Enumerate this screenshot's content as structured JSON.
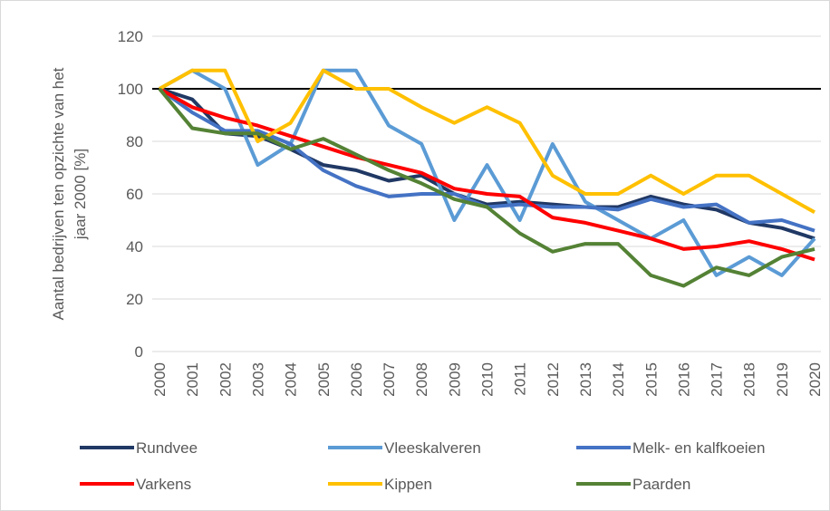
{
  "chart_data": {
    "type": "line",
    "ylabel": [
      "Aantal bedrijven ten opzichte van het",
      "jaar 2000 [%]"
    ],
    "categories": [
      "2000",
      "2001",
      "2002",
      "2003",
      "2004",
      "2005",
      "2006",
      "2007",
      "2008",
      "2009",
      "2010",
      "2011",
      "2012",
      "2013",
      "2014",
      "2015",
      "2016",
      "2017",
      "2018",
      "2019",
      "2020"
    ],
    "ylim": [
      0,
      120
    ],
    "yticks": [
      0,
      20,
      40,
      60,
      80,
      100,
      120
    ],
    "grid": true,
    "hline": 100,
    "hline_color": "#000000",
    "legend": "bottom",
    "series": [
      {
        "name": "Rundvee",
        "color": "#203864",
        "values": [
          100,
          96,
          83,
          82,
          77,
          71,
          69,
          65,
          67,
          60,
          56,
          57,
          56,
          55,
          55,
          59,
          56,
          54,
          49,
          47,
          43
        ]
      },
      {
        "name": "Vleeskalveren",
        "color": "#5b9bd5",
        "values": [
          100,
          107,
          100,
          71,
          79,
          107,
          107,
          86,
          79,
          50,
          71,
          50,
          79,
          57,
          50,
          43,
          50,
          29,
          36,
          29,
          43
        ]
      },
      {
        "name": "Melk- en kalfkoeien",
        "color": "#4472c4",
        "values": [
          100,
          91,
          84,
          84,
          79,
          69,
          63,
          59,
          60,
          60,
          55,
          56,
          55,
          55,
          54,
          58,
          55,
          56,
          49,
          50,
          46
        ]
      },
      {
        "name": "Varkens",
        "color": "#ff0000",
        "values": [
          100,
          93,
          89,
          86,
          82,
          78,
          74,
          71,
          68,
          62,
          60,
          59,
          51,
          49,
          46,
          43,
          39,
          40,
          42,
          39,
          35
        ]
      },
      {
        "name": "Kippen",
        "color": "#ffc000",
        "values": [
          100,
          107,
          107,
          80,
          87,
          107,
          100,
          100,
          93,
          87,
          93,
          87,
          67,
          60,
          60,
          67,
          60,
          67,
          67,
          60,
          53
        ]
      },
      {
        "name": "Paarden",
        "color": "#548235",
        "values": [
          100,
          85,
          83,
          83,
          77,
          81,
          75,
          69,
          64,
          58,
          55,
          45,
          38,
          41,
          41,
          29,
          25,
          32,
          29,
          36,
          39
        ]
      }
    ]
  }
}
